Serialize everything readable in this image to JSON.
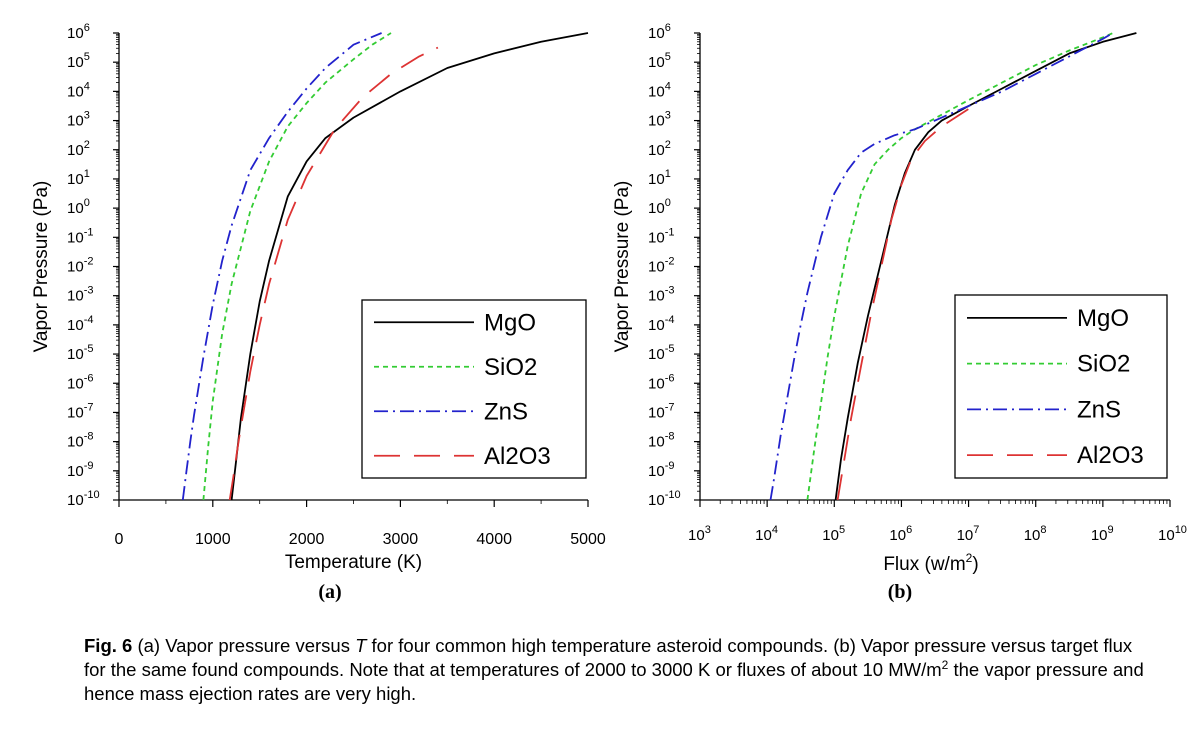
{
  "chart_data": [
    {
      "type": "line",
      "panel_label": "(a)",
      "xlabel": "Temperature (K)",
      "ylabel": "Vapor Pressure (Pa)",
      "x_scale": "linear",
      "y_scale": "log",
      "xlim": [
        0,
        5000
      ],
      "ylim_exponents": [
        -10,
        6
      ],
      "x_ticks": [
        0,
        1000,
        2000,
        3000,
        4000,
        5000
      ],
      "x_tick_labels": [
        "0",
        "1000",
        "2000",
        "3000",
        "4000",
        "5000"
      ],
      "legend_position": "bottom-right",
      "series": [
        {
          "name": "MgO",
          "color": "#000000",
          "dash": "solid",
          "x": [
            1200,
            1250,
            1300,
            1400,
            1500,
            1600,
            1800,
            2000,
            2200,
            2500,
            3000,
            3500,
            4000,
            4500,
            5000
          ],
          "y_log10": [
            -10,
            -8.6,
            -7.2,
            -5.0,
            -3.2,
            -1.8,
            0.4,
            1.6,
            2.4,
            3.1,
            4.0,
            4.8,
            5.3,
            5.7,
            6.0
          ]
        },
        {
          "name": "SiO2",
          "color": "#33cc33",
          "dash": "short",
          "x": [
            900,
            950,
            1000,
            1100,
            1200,
            1400,
            1600,
            1800,
            2000,
            2200,
            2500,
            2700,
            2900
          ],
          "y_log10": [
            -10,
            -8.2,
            -6.6,
            -4.3,
            -2.6,
            -0.1,
            1.6,
            2.8,
            3.6,
            4.3,
            5.1,
            5.6,
            6.0
          ]
        },
        {
          "name": "ZnS",
          "color": "#2222cc",
          "dash": "dashdot",
          "x": [
            680,
            720,
            760,
            800,
            900,
            1000,
            1100,
            1200,
            1400,
            1600,
            1800,
            2000,
            2200,
            2500,
            2800
          ],
          "y_log10": [
            -10,
            -9.0,
            -8.0,
            -7.1,
            -5.1,
            -3.3,
            -1.8,
            -0.6,
            1.3,
            2.4,
            3.3,
            4.1,
            4.8,
            5.6,
            6.0
          ]
        },
        {
          "name": "Al2O3",
          "color": "#dd3333",
          "dash": "long",
          "x": [
            1180,
            1220,
            1260,
            1300,
            1400,
            1500,
            1600,
            1800,
            2000,
            2300,
            2600,
            2900,
            3200,
            3400
          ],
          "y_log10": [
            -10,
            -9.2,
            -8.3,
            -7.5,
            -5.6,
            -4.0,
            -2.6,
            -0.4,
            1.1,
            2.7,
            3.8,
            4.6,
            5.2,
            5.5
          ]
        }
      ]
    },
    {
      "type": "line",
      "panel_label": "(b)",
      "xlabel_prefix": "Flux (w/m",
      "xlabel_sup": "2",
      "xlabel_suffix": ")",
      "ylabel": "Vapor Pressure (Pa)",
      "x_scale": "log",
      "y_scale": "log",
      "xlim_exponents": [
        3,
        10
      ],
      "ylim_exponents": [
        -10,
        6
      ],
      "legend_position": "bottom-right",
      "series": [
        {
          "name": "MgO",
          "color": "#000000",
          "dash": "solid",
          "x_log10": [
            5.02,
            5.1,
            5.2,
            5.35,
            5.5,
            5.7,
            5.9,
            6.05,
            6.2,
            6.4,
            6.6,
            7.0,
            7.5,
            8.0,
            8.5,
            9.0,
            9.5
          ],
          "y_log10": [
            -10,
            -8.6,
            -7.2,
            -5.3,
            -3.7,
            -1.8,
            0.1,
            1.2,
            2.0,
            2.6,
            3.0,
            3.5,
            4.1,
            4.7,
            5.3,
            5.7,
            6.0
          ]
        },
        {
          "name": "SiO2",
          "color": "#33cc33",
          "dash": "short",
          "x_log10": [
            4.6,
            4.7,
            4.8,
            4.9,
            5.0,
            5.2,
            5.4,
            5.6,
            5.8,
            6.0,
            6.2,
            6.6,
            7.0,
            7.5,
            8.0,
            8.5,
            9.0,
            9.15
          ],
          "y_log10": [
            -10,
            -8.3,
            -6.7,
            -5.1,
            -3.7,
            -1.3,
            0.5,
            1.5,
            2.0,
            2.4,
            2.7,
            3.2,
            3.7,
            4.3,
            4.9,
            5.4,
            5.85,
            6.0
          ]
        },
        {
          "name": "ZnS",
          "color": "#2222cc",
          "dash": "dashdot",
          "x_log10": [
            4.05,
            4.1,
            4.2,
            4.3,
            4.4,
            4.5,
            4.6,
            4.8,
            5.0,
            5.2,
            5.4,
            5.6,
            5.9,
            6.2,
            6.6,
            7.0,
            7.5,
            8.0,
            8.5,
            9.0,
            9.15
          ],
          "y_log10": [
            -10,
            -9.3,
            -7.8,
            -6.5,
            -5.2,
            -4.0,
            -2.9,
            -1.0,
            0.5,
            1.3,
            1.9,
            2.2,
            2.5,
            2.7,
            3.1,
            3.5,
            4.0,
            4.6,
            5.2,
            5.8,
            6.0
          ]
        },
        {
          "name": "Al2O3",
          "color": "#dd3333",
          "dash": "long",
          "x_log10": [
            5.05,
            5.15,
            5.25,
            5.4,
            5.55,
            5.7,
            5.85,
            6.0,
            6.15,
            6.35,
            6.6,
            7.0
          ],
          "y_log10": [
            -10,
            -8.6,
            -7.2,
            -5.4,
            -3.6,
            -2.0,
            -0.4,
            0.8,
            1.7,
            2.3,
            2.8,
            3.4
          ]
        }
      ]
    }
  ],
  "caption": {
    "fig_label": "Fig. 6",
    "text_1": " (a) Vapor pressure versus ",
    "italic_T": "T",
    "text_2": " for four common high temperature asteroid compounds. (b) Vapor pressure versus target flux for the same found compounds. Note that at temperatures of 2000 to 3000 K or fluxes of about 10 MW/m",
    "sup": "2",
    "text_3": " the vapor pressure and hence mass ejection rates are very high."
  }
}
